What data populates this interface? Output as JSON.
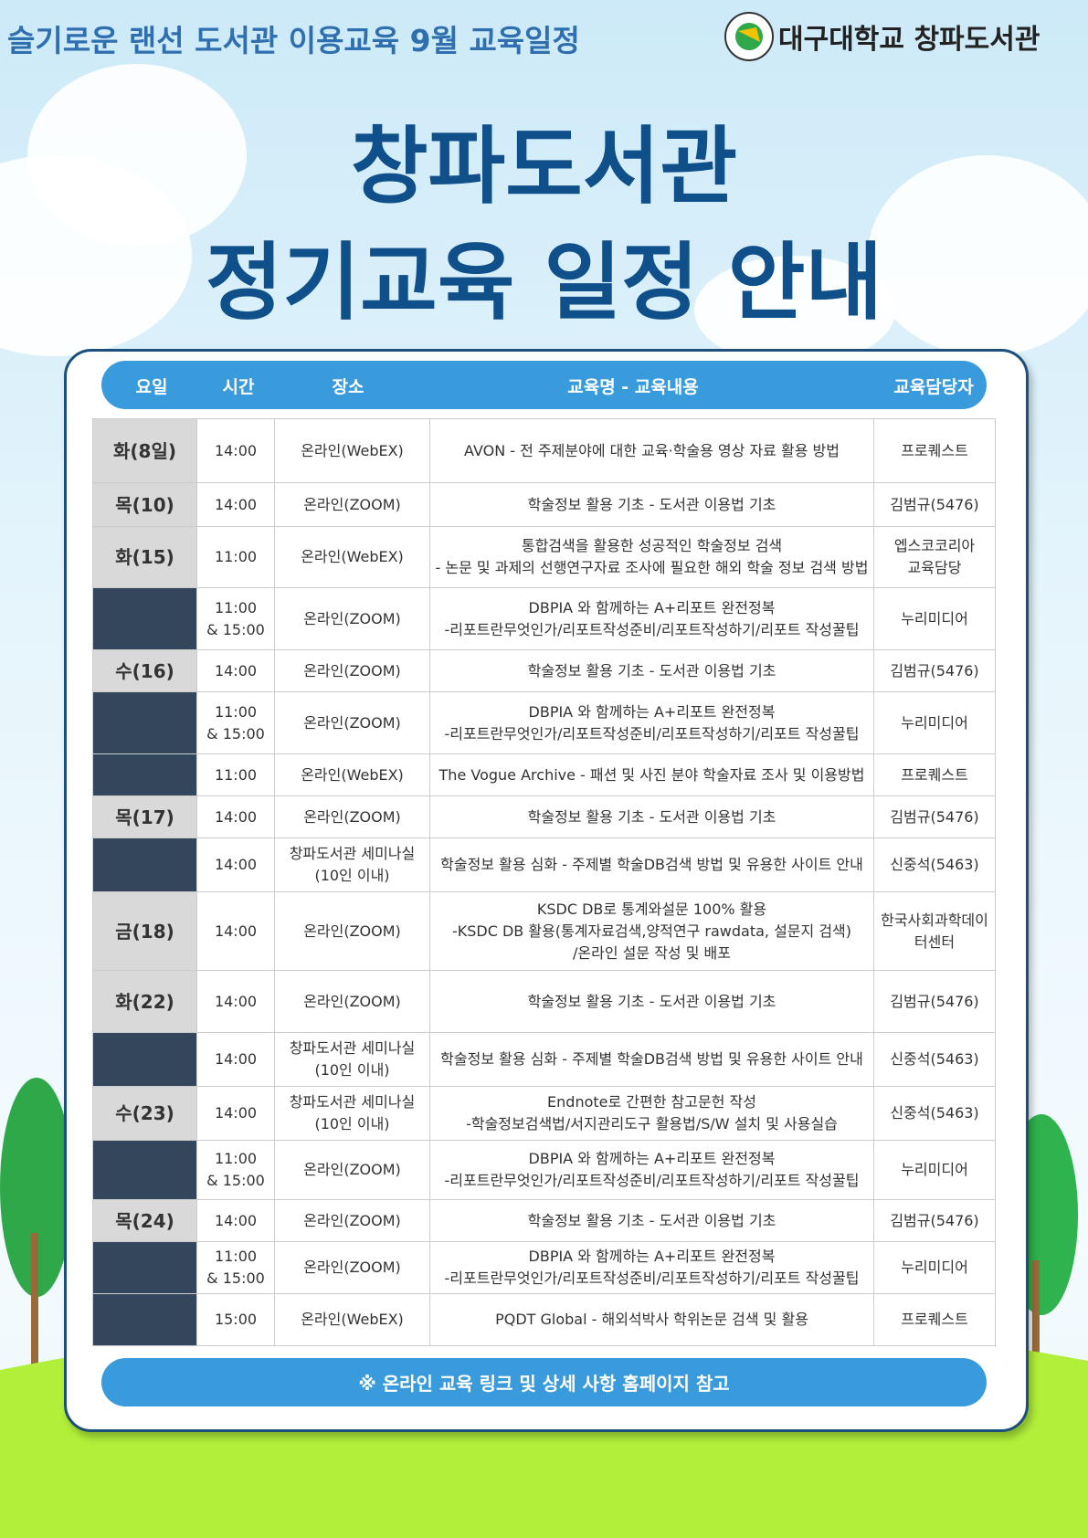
{
  "header": {
    "subtitle": "슬기로운 랜선 도서관 이용교육  9월 교육일정",
    "logo_text": "대구대학교 창파도서관"
  },
  "title": {
    "line1": "창파도서관",
    "line2": "정기교육 일정 안내"
  },
  "table": {
    "columns": [
      "요일",
      "시간",
      "장소",
      "교육명 - 교육내용",
      "교육담당자"
    ],
    "rows": [
      {
        "day": "화(8일)",
        "time": "14:00",
        "place": "온라인(WebEX)",
        "topic": "AVON - 전 주제분야에 대한 교육·학술용 영상 자료 활용 방법",
        "staff": "프로퀘스트"
      },
      {
        "day": "목(10)",
        "time": "14:00",
        "place": "온라인(ZOOM)",
        "topic": "학술정보 활용 기초 - 도서관 이용법 기초",
        "staff": "김범규(5476)"
      },
      {
        "day": "화(15)",
        "time": "11:00",
        "place": "온라인(WebEX)",
        "topic": [
          "통합검색을 활용한 성공적인 학술정보 검색",
          "- 논문 및 과제의 선행연구자료 조사에 필요한 해외 학술 정보 검색 방법"
        ],
        "staff": [
          "엡스코코리아",
          "교육담당"
        ]
      },
      {
        "day": null,
        "time": [
          "11:00",
          "& 15:00"
        ],
        "place": "온라인(ZOOM)",
        "topic": [
          "DBPIA 와 함께하는 A+리포트 완전정복",
          "-리포트란무엇인가/리포트작성준비/리포트작성하기/리포트 작성꿀팁"
        ],
        "staff": "누리미디어"
      },
      {
        "day": "수(16)",
        "time": "14:00",
        "place": "온라인(ZOOM)",
        "topic": "학술정보 활용 기초 - 도서관 이용법 기초",
        "staff": "김범규(5476)"
      },
      {
        "day": null,
        "time": [
          "11:00",
          "& 15:00"
        ],
        "place": "온라인(ZOOM)",
        "topic": [
          "DBPIA 와 함께하는 A+리포트 완전정복",
          "-리포트란무엇인가/리포트작성준비/리포트작성하기/리포트 작성꿀팁"
        ],
        "staff": "누리미디어"
      },
      {
        "day": null,
        "time": "11:00",
        "place": "온라인(WebEX)",
        "topic": "The Vogue Archive - 패션 및 사진 분야 학술자료 조사 및 이용방법",
        "staff": "프로퀘스트"
      },
      {
        "day": "목(17)",
        "time": "14:00",
        "place": "온라인(ZOOM)",
        "topic": "학술정보 활용 기초 - 도서관 이용법 기초",
        "staff": "김범규(5476)"
      },
      {
        "day": null,
        "time": "14:00",
        "place": [
          "창파도서관 세미나실",
          "(10인 이내)"
        ],
        "topic": "학술정보 활용 심화 - 주제별 학술DB검색 방법 및 유용한 사이트 안내",
        "staff": "신중석(5463)"
      },
      {
        "day": "금(18)",
        "time": "14:00",
        "place": "온라인(ZOOM)",
        "topic": [
          "KSDC DB로 통계와설문 100% 활용",
          "-KSDC DB 활용(통계자료검색,양적연구 rawdata, 설문지 검색)",
          "/온라인 설문 작성 및 배포"
        ],
        "staff": [
          "한국사회과학데이",
          "터센터"
        ]
      },
      {
        "day": "화(22)",
        "time": "14:00",
        "place": "온라인(ZOOM)",
        "topic": "학술정보 활용 기초 - 도서관 이용법 기초",
        "staff": "김범규(5476)"
      },
      {
        "day": null,
        "time": "14:00",
        "place": [
          "창파도서관 세미나실",
          "(10인 이내)"
        ],
        "topic": "학술정보 활용 심화 - 주제별 학술DB검색 방법 및 유용한 사이트 안내",
        "staff": "신중석(5463)"
      },
      {
        "day": "수(23)",
        "time": "14:00",
        "place": [
          "창파도서관 세미나실",
          "(10인 이내)"
        ],
        "topic": [
          "Endnote로 간편한 참고문헌 작성",
          "-학술정보검색법/서지관리도구 활용법/S/W 설치 및 사용실습"
        ],
        "staff": "신중석(5463)"
      },
      {
        "day": null,
        "time": [
          "11:00",
          "& 15:00"
        ],
        "place": "온라인(ZOOM)",
        "topic": [
          "DBPIA 와 함께하는 A+리포트 완전정복",
          "-리포트란무엇인가/리포트작성준비/리포트작성하기/리포트 작성꿀팁"
        ],
        "staff": "누리미디어"
      },
      {
        "day": "목(24)",
        "time": "14:00",
        "place": "온라인(ZOOM)",
        "topic": "학술정보 활용 기초 - 도서관 이용법 기초",
        "staff": "김범규(5476)"
      },
      {
        "day": null,
        "time": [
          "11:00",
          "& 15:00"
        ],
        "place": "온라인(ZOOM)",
        "topic": [
          "DBPIA 와 함께하는 A+리포트 완전정복",
          "-리포트란무엇인가/리포트작성준비/리포트작성하기/리포트 작성꿀팁"
        ],
        "staff": "누리미디어"
      },
      {
        "day": null,
        "time": "15:00",
        "place": "온라인(WebEX)",
        "topic": "PQDT Global - 해외석박사 학위논문 검색 및 활용",
        "staff": "프로퀘스트"
      }
    ]
  },
  "footer": {
    "note": "※ 온라인 교육 링크 및 상세 사항 홈페이지 참고"
  }
}
